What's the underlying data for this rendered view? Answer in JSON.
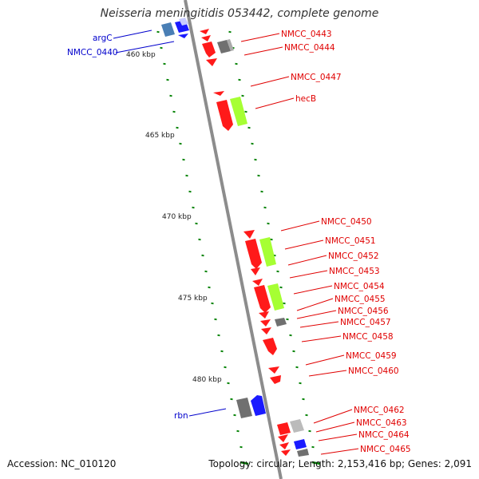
{
  "title": "Neisseria meningitidis 053442, complete genome",
  "accession": "Accession: NC_010120",
  "topology": "Topology: circular; Length: 2,153,416 bp; Genes: 2,091",
  "colors": {
    "backbone": "#8c8c8c",
    "tick": "#008000",
    "forward_label": "#0000cc",
    "reverse_label": "#e00000",
    "gene_red": "#ff1a1a",
    "gene_green": "#a6ff33",
    "gene_gray": "#707070",
    "gene_lightgray": "#bbbbbb",
    "gene_blue": "#1a1aff",
    "gene_steelblue": "#4a7fb5"
  },
  "scale_labels": [
    "460 kbp",
    "465 kbp",
    "470 kbp",
    "475 kbp",
    "480 kbp"
  ],
  "left_labels": [
    "argC",
    "NMCC_0440",
    "rbn"
  ],
  "right_labels": [
    "NMCC_0443",
    "NMCC_0444",
    "NMCC_0447",
    "hecB",
    "NMCC_0450",
    "NMCC_0451",
    "NMCC_0452",
    "NMCC_0453",
    "NMCC_0454",
    "NMCC_0455",
    "NMCC_0456",
    "NMCC_0457",
    "NMCC_0458",
    "NMCC_0459",
    "NMCC_0460",
    "NMCC_0462",
    "NMCC_0463",
    "NMCC_0464",
    "NMCC_0465"
  ]
}
